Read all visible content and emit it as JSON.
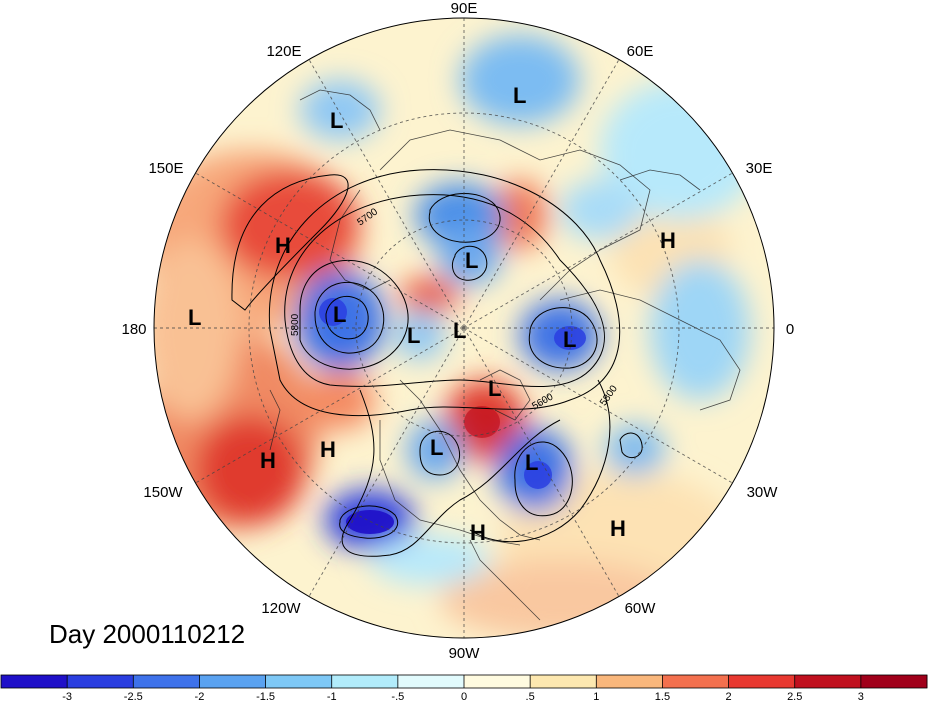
{
  "title": "Day 2000110212",
  "longitude_labels": [
    "90E",
    "60E",
    "30E",
    "0",
    "30W",
    "60W",
    "90W",
    "120W",
    "150W",
    "180",
    "150E",
    "120E"
  ],
  "contour_labels": [
    "5700",
    "5800",
    "5600",
    "5800"
  ],
  "pressure_centers": [
    "L",
    "L",
    "L",
    "L",
    "L",
    "L",
    "L",
    "L",
    "L",
    "L",
    "L",
    "H",
    "H",
    "H",
    "H",
    "H",
    "H"
  ],
  "colorbar": {
    "ticks": [
      "-3",
      "-2.5",
      "-2",
      "-1.5",
      "-1",
      "-.5",
      "0",
      ".5",
      "1",
      "1.5",
      "2",
      "2.5",
      "3"
    ],
    "colors": [
      "#1f10c8",
      "#2a3ee0",
      "#3e72ea",
      "#5aa2f0",
      "#7ec8f6",
      "#b2ecfb",
      "#e2fbfd",
      "#fffbe0",
      "#fde8b0",
      "#f9b77c",
      "#f3704e",
      "#e83830",
      "#c0101e",
      "#a0001a"
    ]
  },
  "colors": {
    "neg_strong": "#2a3ee0",
    "neg_mid": "#5aa2f0",
    "neg_weak": "#b2ecfb",
    "neutral": "#fffbe0",
    "pos_weak": "#fde8b0",
    "pos_mid": "#f9b77c",
    "pos_strong": "#e83830"
  }
}
